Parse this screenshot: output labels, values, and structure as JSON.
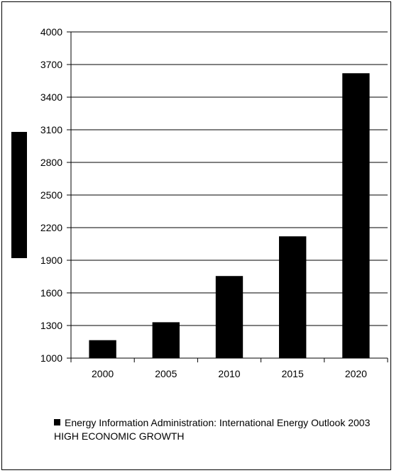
{
  "chart_data": {
    "type": "bar",
    "categories": [
      "2000",
      "2005",
      "2010",
      "2015",
      "2020"
    ],
    "values": [
      1165,
      1330,
      1755,
      2120,
      3620
    ],
    "ylim": [
      1000,
      4000
    ],
    "yticks": [
      "1000",
      "1300",
      "1600",
      "1900",
      "2200",
      "2500",
      "2800",
      "3100",
      "3400",
      "3700",
      "4000"
    ],
    "grid": true,
    "legend_position": "bottom",
    "series": [
      {
        "name": "Energy Information Administration: International Energy Outlook 2003 HIGH ECONOMIC GROWTH",
        "values": [
          1165,
          1330,
          1755,
          2120,
          3620
        ],
        "color": "#000000"
      }
    ]
  },
  "legend": {
    "label": "Energy Information Administration: International Energy Outlook 2003 HIGH ECONOMIC GROWTH"
  }
}
